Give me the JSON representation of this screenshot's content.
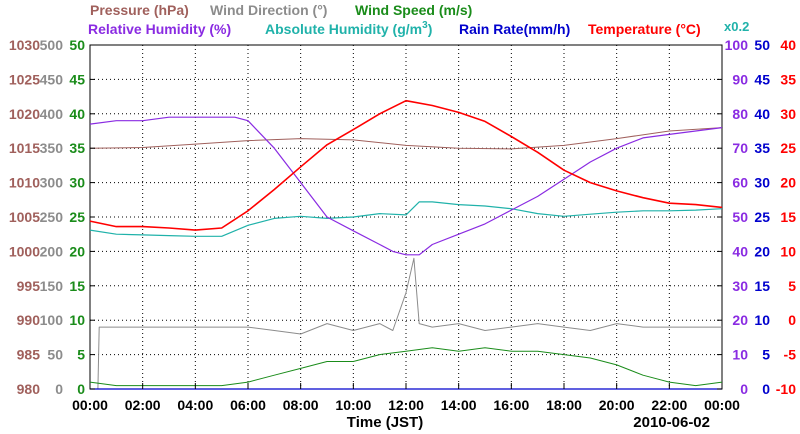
{
  "colors": {
    "pressure": "#a0605c",
    "wind_direction": "#8c8c8c",
    "wind_speed": "#1a8c1a",
    "relative_humidity": "#8a2be2",
    "absolute_humidity": "#20b2aa",
    "rain_rate": "#0000cd",
    "temperature": "#ff0000"
  },
  "chart_data": {
    "type": "line",
    "date": "2010-06-02",
    "xlabel": "Time (JST)",
    "x_ticks": [
      "00:00",
      "02:00",
      "04:00",
      "06:00",
      "08:00",
      "10:00",
      "12:00",
      "14:00",
      "16:00",
      "18:00",
      "20:00",
      "22:00",
      "00:00"
    ],
    "x_range_hours": [
      0,
      24
    ],
    "legend": {
      "pressure": "Pressure (hPa)",
      "wind_direction": "Wind Direction (°)",
      "wind_speed": "Wind Speed (m/s)",
      "relative_humidity": "Relative Humidity (%)",
      "absolute_humidity": "Absolute Humidity (g/m",
      "absolute_humidity_sup": "3",
      "absolute_humidity_close": ")",
      "rain_rate": "Rain Rate(mm/h)",
      "temperature": "Temperature (°C)",
      "scale_note": "x0.2"
    },
    "axes": {
      "pressure": {
        "min": 980,
        "max": 1030,
        "ticks": [
          "1030",
          "1025",
          "1020",
          "1015",
          "1010",
          "1005",
          "1000",
          "995",
          "990",
          "985",
          "980"
        ]
      },
      "wind_direction": {
        "min": 0,
        "max": 500,
        "ticks": [
          "500",
          "450",
          "400",
          "350",
          "300",
          "250",
          "200",
          "150",
          "100",
          "50",
          "0"
        ]
      },
      "wind_speed": {
        "min": 0,
        "max": 50,
        "ticks": [
          "50",
          "45",
          "40",
          "35",
          "30",
          "25",
          "20",
          "15",
          "10",
          "5",
          "0"
        ]
      },
      "relative_humidity": {
        "min": 0,
        "max": 100,
        "ticks": [
          "100",
          "90",
          "80",
          "70",
          "60",
          "50",
          "40",
          "30",
          "20",
          "10",
          "0"
        ]
      },
      "rain_rate": {
        "min": 0,
        "max": 50,
        "ticks": [
          "50",
          "45",
          "40",
          "35",
          "30",
          "25",
          "20",
          "15",
          "10",
          "5",
          "0"
        ]
      },
      "temperature": {
        "min": -10,
        "max": 40,
        "ticks": [
          "40",
          "35",
          "30",
          "25",
          "20",
          "15",
          "10",
          "5",
          "0",
          "-5",
          "-10"
        ]
      }
    },
    "series": [
      {
        "name": "Pressure (hPa)",
        "key": "pressure",
        "x": [
          0,
          2,
          4,
          6,
          8,
          10,
          12,
          14,
          16,
          18,
          20,
          22,
          24
        ],
        "values": [
          1015.0,
          1015.1,
          1015.6,
          1016.1,
          1016.4,
          1016.2,
          1015.4,
          1015.0,
          1014.9,
          1015.4,
          1016.4,
          1017.5,
          1018.0
        ]
      },
      {
        "name": "Relative Humidity (%)",
        "key": "relative_humidity",
        "x": [
          0,
          1,
          2,
          3,
          4,
          5,
          5.5,
          6,
          7,
          8,
          9,
          10,
          11,
          11.5,
          12,
          12.5,
          13,
          14,
          15,
          16,
          17,
          18,
          19,
          20,
          21,
          22,
          23,
          24
        ],
        "values": [
          77,
          78,
          78,
          79,
          79,
          79,
          79,
          78,
          70,
          60,
          50,
          46,
          42,
          40,
          39,
          39,
          42,
          45,
          48,
          52,
          56,
          61,
          66,
          70,
          73,
          74,
          75,
          76
        ]
      },
      {
        "name": "Temperature (°C)",
        "key": "temperature",
        "x": [
          0,
          1,
          2,
          3,
          4,
          5,
          6,
          7,
          8,
          9,
          10,
          11,
          12,
          13,
          14,
          15,
          16,
          17,
          18,
          19,
          20,
          21,
          22,
          23,
          24
        ],
        "values": [
          14.4,
          13.6,
          13.6,
          13.4,
          13.1,
          13.4,
          15.9,
          19.0,
          22.3,
          25.5,
          27.7,
          30.0,
          31.9,
          31.2,
          30.2,
          28.9,
          26.7,
          24.4,
          21.8,
          20.0,
          18.8,
          17.8,
          17.0,
          16.8,
          16.4
        ]
      },
      {
        "name": "Absolute Humidity (g/m3) x0.2",
        "key": "absolute_humidity",
        "x": [
          0,
          1,
          2,
          3,
          4,
          5,
          6,
          7,
          8,
          9,
          10,
          11,
          12,
          12.5,
          13,
          14,
          15,
          16,
          17,
          18,
          19,
          20,
          21,
          22,
          23,
          24
        ],
        "values": [
          231,
          225,
          224,
          223,
          222,
          222,
          238,
          248,
          251,
          248,
          250,
          255,
          253,
          272,
          272,
          268,
          266,
          262,
          255,
          251,
          254,
          257,
          259,
          259,
          260,
          262
        ]
      },
      {
        "name": "Wind Direction (°)",
        "key": "wind_direction",
        "x": [
          0,
          0.3,
          0.35,
          1,
          1.5,
          2,
          3,
          4,
          5,
          5.9,
          6,
          7,
          8,
          9,
          10,
          11,
          11.5,
          12,
          12.3,
          12.5,
          13,
          14,
          15,
          16,
          17,
          18,
          19,
          20,
          21,
          22,
          23,
          24
        ],
        "values": [
          0,
          0,
          90,
          90,
          90,
          90,
          90,
          90,
          90,
          90,
          90,
          85,
          80,
          95,
          85,
          95,
          85,
          140,
          190,
          95,
          90,
          95,
          85,
          90,
          95,
          90,
          85,
          95,
          90,
          90,
          90,
          90
        ]
      },
      {
        "name": "Wind Speed (m/s)",
        "key": "wind_speed",
        "x": [
          0,
          1,
          2,
          3,
          4,
          5,
          6,
          7,
          8,
          9,
          10,
          11,
          12,
          13,
          14,
          15,
          16,
          17,
          18,
          19,
          20,
          21,
          22,
          23,
          24
        ],
        "values": [
          1,
          0.5,
          0.5,
          0.5,
          0.5,
          0.5,
          1,
          2,
          3,
          4,
          4,
          5,
          5.5,
          6,
          5.5,
          6,
          5.5,
          5.5,
          5,
          4.5,
          3.5,
          2,
          1,
          0.5,
          1
        ]
      },
      {
        "name": "Rain Rate(mm/h)",
        "key": "rain_rate",
        "x": [
          0,
          24
        ],
        "values": [
          0,
          0
        ]
      }
    ]
  }
}
